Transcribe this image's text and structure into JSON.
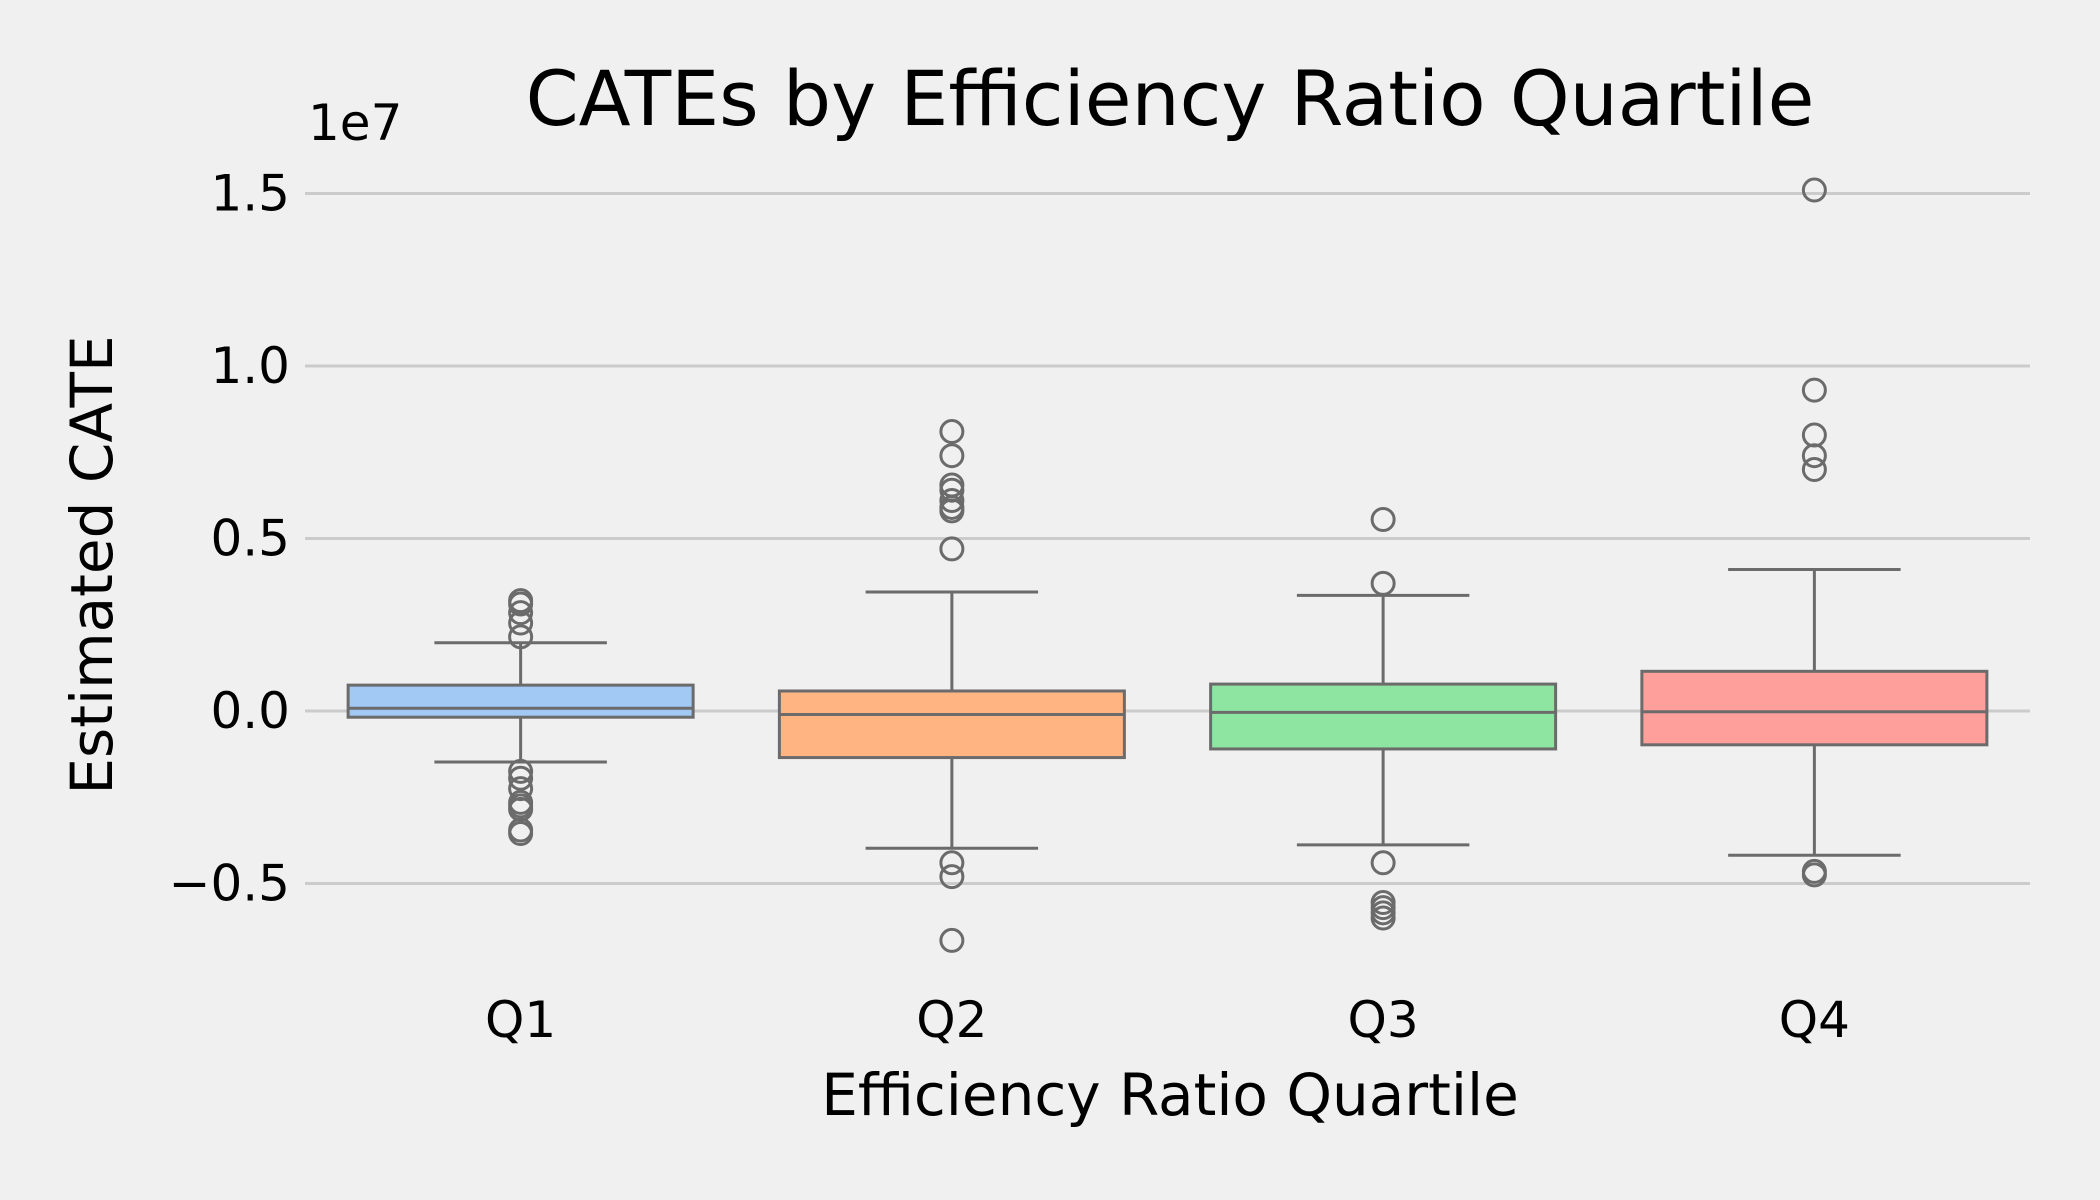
{
  "chart_data": {
    "type": "box",
    "title": "CATEs by Efficiency Ratio Quartile",
    "xlabel": "Efficiency Ratio Quartile",
    "ylabel": "Estimated CATE",
    "y_offset_label": "1e7",
    "y_scale": 10000000,
    "ylim": [
      -0.77,
      1.6
    ],
    "yticks": [
      -0.5,
      0.0,
      0.5,
      1.0,
      1.5
    ],
    "ytick_labels": [
      "−0.5",
      "0.0",
      "0.5",
      "1.0",
      "1.5"
    ],
    "grid": "horizontal",
    "categories": [
      "Q1",
      "Q2",
      "Q3",
      "Q4"
    ],
    "colors": [
      "#a1c9f4",
      "#ffb482",
      "#8de5a1",
      "#ff9f9b"
    ],
    "series": [
      {
        "category": "Q1",
        "whisker_low": -0.148,
        "q1": -0.018,
        "median": 0.008,
        "q3": 0.075,
        "whisker_high": 0.198,
        "outliers": [
          0.32,
          0.31,
          0.285,
          0.255,
          0.215,
          -0.175,
          -0.195,
          -0.225,
          -0.265,
          -0.275,
          -0.285,
          -0.345,
          -0.355
        ]
      },
      {
        "category": "Q2",
        "whisker_low": -0.398,
        "q1": -0.135,
        "median": -0.01,
        "q3": 0.058,
        "whisker_high": 0.345,
        "outliers": [
          0.81,
          0.74,
          0.655,
          0.64,
          0.61,
          0.59,
          0.58,
          0.47,
          -0.44,
          -0.48,
          -0.665
        ]
      },
      {
        "category": "Q3",
        "whisker_low": -0.388,
        "q1": -0.11,
        "median": -0.004,
        "q3": 0.078,
        "whisker_high": 0.335,
        "outliers": [
          0.555,
          0.37,
          -0.44,
          -0.555,
          -0.57,
          -0.585,
          -0.6
        ]
      },
      {
        "category": "Q4",
        "whisker_low": -0.418,
        "q1": -0.098,
        "median": -0.002,
        "q3": 0.115,
        "whisker_high": 0.41,
        "outliers": [
          1.51,
          0.93,
          0.8,
          0.74,
          0.7,
          -0.465,
          -0.475
        ]
      }
    ]
  }
}
